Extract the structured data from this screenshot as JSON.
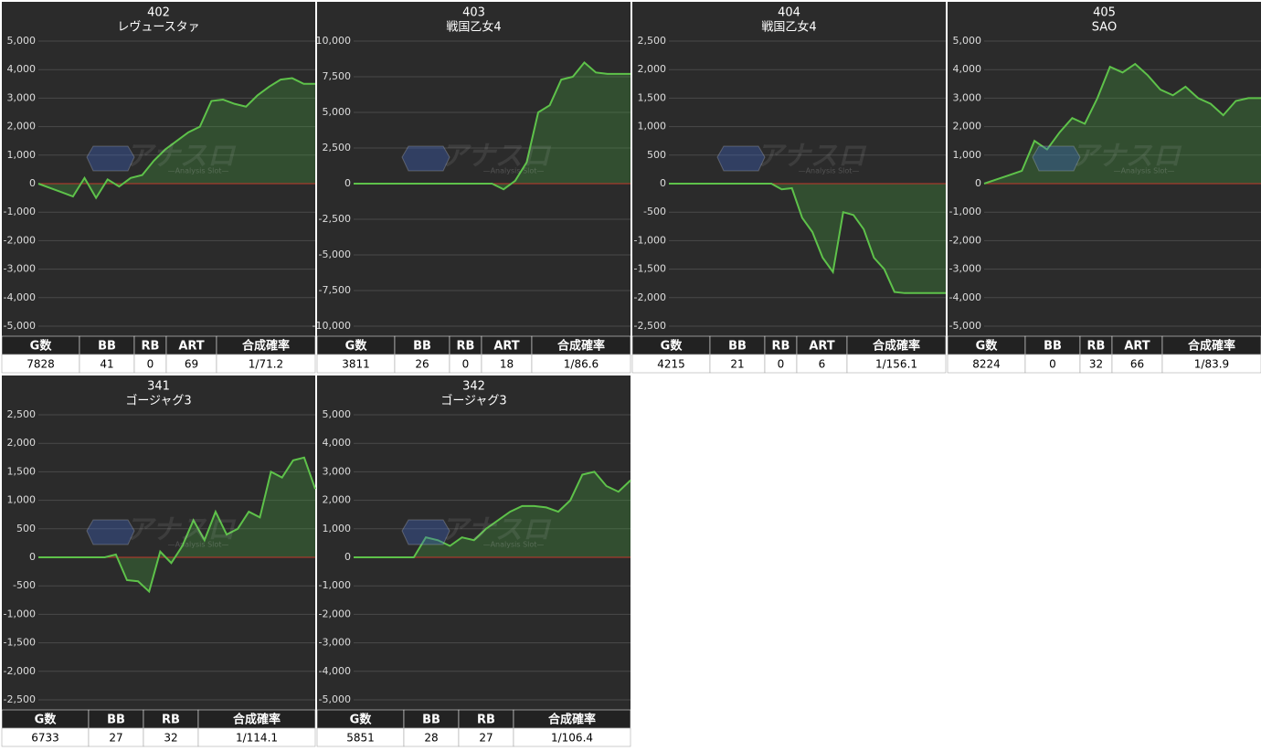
{
  "watermark": {
    "logo": "アナスロ",
    "sub": "—Analysis Slot—"
  },
  "chart_data": [
    {
      "type": "line",
      "title": "402",
      "subtitle": "レヴュースタァ",
      "color": "#5ec24a",
      "zero_line_color": "#c0392b",
      "values": [
        0,
        -150,
        -300,
        -450,
        200,
        -500,
        150,
        -100,
        200,
        300,
        800,
        1200,
        1500,
        1800,
        2000,
        2900,
        2950,
        2800,
        2700,
        3100,
        3400,
        3650,
        3700,
        3500,
        3500
      ],
      "ylim": [
        -5000,
        5000
      ],
      "yticks": [
        {
          "value": -5000,
          "label": "-5,000"
        },
        {
          "value": -4000,
          "label": "-4,000"
        },
        {
          "value": -3000,
          "label": "-3,000"
        },
        {
          "value": -2000,
          "label": "-2,000"
        },
        {
          "value": -1000,
          "label": "-1,000"
        },
        0,
        {
          "value": 1000,
          "label": "1,000"
        },
        {
          "value": 2000,
          "label": "2,000"
        },
        {
          "value": 3000,
          "label": "3,000"
        },
        {
          "value": 4000,
          "label": "4,000"
        },
        {
          "value": 5000,
          "label": "5,000"
        }
      ],
      "table": {
        "headers": [
          "G数",
          "BB",
          "RB",
          "ART",
          "合成確率"
        ],
        "row": [
          7828,
          41,
          0,
          69,
          "1/71.2"
        ]
      }
    },
    {
      "type": "line",
      "title": "403",
      "subtitle": "戦国乙女4",
      "color": "#5ec24a",
      "zero_line_color": "#c0392b",
      "values": [
        0,
        0,
        0,
        0,
        0,
        0,
        0,
        0,
        0,
        0,
        0,
        0,
        0,
        -400,
        200,
        1500,
        5000,
        5500,
        7300,
        7500,
        8500,
        7800,
        7700,
        7700,
        7700
      ],
      "ylim": [
        -10000,
        10000
      ],
      "yticks": [
        {
          "value": -10000,
          "label": "-10,000"
        },
        {
          "value": -7500,
          "label": "-7,500"
        },
        {
          "value": -5000,
          "label": "-5,000"
        },
        {
          "value": -2500,
          "label": "-2,500"
        },
        0,
        {
          "value": 2500,
          "label": "2,500"
        },
        {
          "value": 5000,
          "label": "5,000"
        },
        {
          "value": 7500,
          "label": "7,500"
        },
        {
          "value": 10000,
          "label": "10,000"
        }
      ],
      "table": {
        "headers": [
          "G数",
          "BB",
          "RB",
          "ART",
          "合成確率"
        ],
        "row": [
          3811,
          26,
          0,
          18,
          "1/86.6"
        ]
      }
    },
    {
      "type": "line",
      "title": "404",
      "subtitle": "戦国乙女4",
      "color": "#5ec24a",
      "zero_line_color": "#c0392b",
      "values": [
        0,
        0,
        0,
        0,
        0,
        0,
        0,
        0,
        0,
        0,
        0,
        -100,
        -80,
        -600,
        -850,
        -1300,
        -1550,
        -500,
        -550,
        -800,
        -1300,
        -1500,
        -1900,
        -1920,
        -1920,
        -1920,
        -1920,
        -1920
      ],
      "ylim": [
        -2500,
        2500
      ],
      "yticks": [
        {
          "value": -2500,
          "label": "-2,500"
        },
        {
          "value": -2000,
          "label": "-2,000"
        },
        {
          "value": -1500,
          "label": "-1,500"
        },
        {
          "value": -1000,
          "label": "-1,000"
        },
        -500,
        0,
        500,
        {
          "value": 1000,
          "label": "1,000"
        },
        {
          "value": 1500,
          "label": "1,500"
        },
        {
          "value": 2000,
          "label": "2,000"
        },
        {
          "value": 2500,
          "label": "2,500"
        }
      ],
      "table": {
        "headers": [
          "G数",
          "BB",
          "RB",
          "ART",
          "合成確率"
        ],
        "row": [
          4215,
          21,
          0,
          6,
          "1/156.1"
        ]
      }
    },
    {
      "type": "line",
      "title": "405",
      "subtitle": "SAO",
      "color": "#5ec24a",
      "zero_line_color": "#c0392b",
      "values": [
        0,
        150,
        300,
        450,
        1500,
        1200,
        1800,
        2300,
        2100,
        3000,
        4100,
        3900,
        4200,
        3800,
        3300,
        3100,
        3400,
        3000,
        2800,
        2400,
        2900,
        3000,
        3000
      ],
      "ylim": [
        -5000,
        5000
      ],
      "yticks": [
        {
          "value": -5000,
          "label": "-5,000"
        },
        {
          "value": -4000,
          "label": "-4,000"
        },
        {
          "value": -3000,
          "label": "-3,000"
        },
        {
          "value": -2000,
          "label": "-2,000"
        },
        {
          "value": -1000,
          "label": "-1,000"
        },
        0,
        {
          "value": 1000,
          "label": "1,000"
        },
        {
          "value": 2000,
          "label": "2,000"
        },
        {
          "value": 3000,
          "label": "3,000"
        },
        {
          "value": 4000,
          "label": "4,000"
        },
        {
          "value": 5000,
          "label": "5,000"
        }
      ],
      "table": {
        "headers": [
          "G数",
          "BB",
          "RB",
          "ART",
          "合成確率"
        ],
        "row": [
          8224,
          0,
          32,
          66,
          "1/83.9"
        ]
      }
    },
    {
      "type": "line",
      "title": "341",
      "subtitle": "ゴージャグ3",
      "color": "#5ec24a",
      "zero_line_color": "#c0392b",
      "values": [
        0,
        0,
        0,
        0,
        0,
        0,
        0,
        50,
        -400,
        -420,
        -600,
        100,
        -100,
        200,
        650,
        300,
        800,
        400,
        500,
        800,
        700,
        1500,
        1400,
        1700,
        1750,
        1200
      ],
      "ylim": [
        -2500,
        2500
      ],
      "yticks": [
        {
          "value": -2500,
          "label": "-2,500"
        },
        {
          "value": -2000,
          "label": "-2,000"
        },
        {
          "value": -1500,
          "label": "-1,500"
        },
        {
          "value": -1000,
          "label": "-1,000"
        },
        -500,
        0,
        500,
        {
          "value": 1000,
          "label": "1,000"
        },
        {
          "value": 1500,
          "label": "1,500"
        },
        {
          "value": 2000,
          "label": "2,000"
        },
        {
          "value": 2500,
          "label": "2,500"
        }
      ],
      "table": {
        "headers": [
          "G数",
          "BB",
          "RB",
          "合成確率"
        ],
        "row": [
          6733,
          27,
          32,
          "1/114.1"
        ]
      }
    },
    {
      "type": "line",
      "title": "342",
      "subtitle": "ゴージャグ3",
      "color": "#5ec24a",
      "zero_line_color": "#c0392b",
      "values": [
        0,
        0,
        0,
        0,
        0,
        0,
        700,
        600,
        400,
        700,
        600,
        1000,
        1300,
        1600,
        1800,
        1800,
        1750,
        1600,
        2000,
        2900,
        3000,
        2500,
        2300,
        2700
      ],
      "ylim": [
        -5000,
        5000
      ],
      "yticks": [
        {
          "value": -5000,
          "label": "-5,000"
        },
        {
          "value": -4000,
          "label": "-4,000"
        },
        {
          "value": -3000,
          "label": "-3,000"
        },
        {
          "value": -2000,
          "label": "-2,000"
        },
        {
          "value": -1000,
          "label": "-1,000"
        },
        0,
        {
          "value": 1000,
          "label": "1,000"
        },
        {
          "value": 2000,
          "label": "2,000"
        },
        {
          "value": 3000,
          "label": "3,000"
        },
        {
          "value": 4000,
          "label": "4,000"
        },
        {
          "value": 5000,
          "label": "5,000"
        }
      ],
      "table": {
        "headers": [
          "G数",
          "BB",
          "RB",
          "合成確率"
        ],
        "row": [
          5851,
          28,
          27,
          "1/106.4"
        ]
      }
    }
  ]
}
